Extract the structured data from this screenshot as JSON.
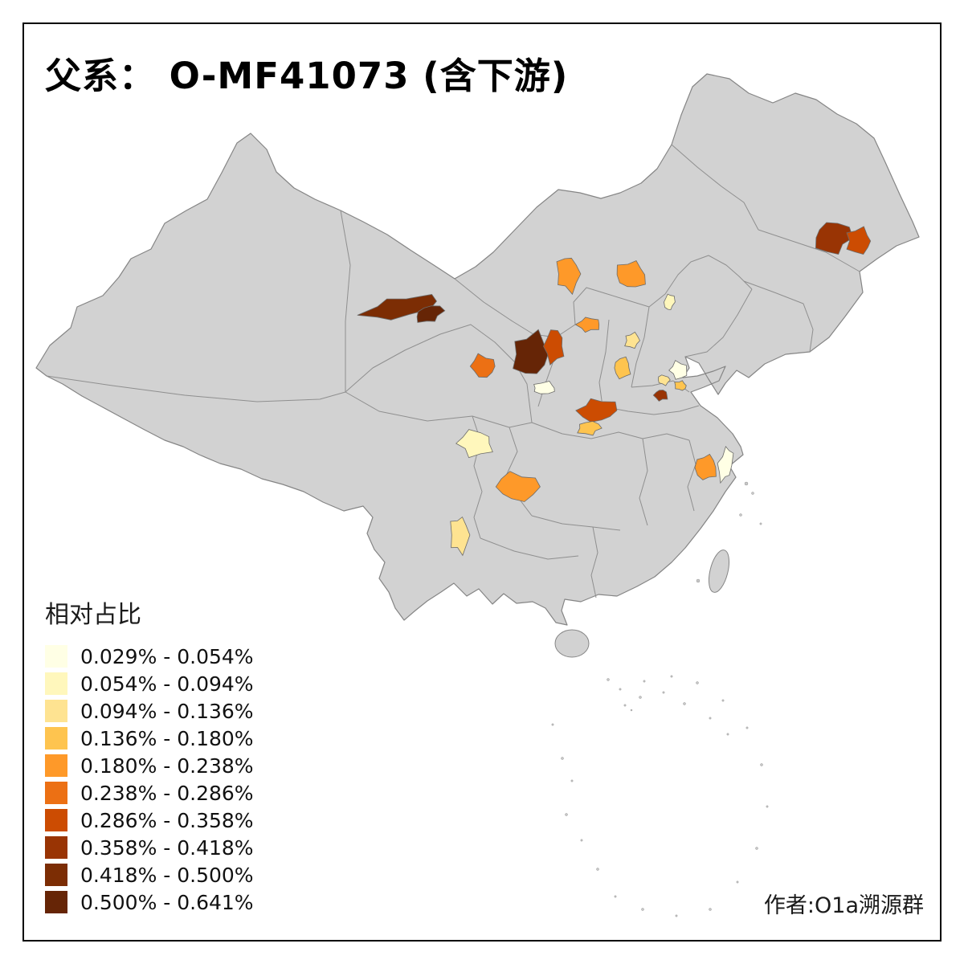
{
  "title": "父系： O-MF41073 (含下游)",
  "attribution": "作者:O1a溯源群",
  "legend": {
    "title": "相对占比",
    "items": [
      {
        "label": "0.029% - 0.054%",
        "color": "#ffffe5"
      },
      {
        "label": "0.054% - 0.094%",
        "color": "#fff7bc"
      },
      {
        "label": "0.094% - 0.136%",
        "color": "#fee391"
      },
      {
        "label": "0.136% - 0.180%",
        "color": "#fec44f"
      },
      {
        "label": "0.180% - 0.238%",
        "color": "#fe9929"
      },
      {
        "label": "0.238% - 0.286%",
        "color": "#ec7014"
      },
      {
        "label": "0.286% - 0.358%",
        "color": "#cc4c02"
      },
      {
        "label": "0.358% - 0.418%",
        "color": "#993404"
      },
      {
        "label": "0.418% - 0.500%",
        "color": "#7c2d04"
      },
      {
        "label": "0.500% - 0.641%",
        "color": "#662506"
      }
    ]
  },
  "map": {
    "land_fill": "#d2d2d2",
    "land_border": "#858585",
    "background": "#ffffff",
    "regions": [
      {
        "id": "region-01",
        "color": "#7c2d04",
        "bin": "0.418% - 0.500%"
      },
      {
        "id": "region-02",
        "color": "#662506",
        "bin": "0.500% - 0.641%"
      },
      {
        "id": "region-03",
        "color": "#662506",
        "bin": "0.500% - 0.641%"
      },
      {
        "id": "region-04",
        "color": "#cc4c02",
        "bin": "0.286% - 0.358%"
      },
      {
        "id": "region-05",
        "color": "#ec7014",
        "bin": "0.238% - 0.286%"
      },
      {
        "id": "region-06",
        "color": "#fe9929",
        "bin": "0.180% - 0.238%"
      },
      {
        "id": "region-07",
        "color": "#fe9929",
        "bin": "0.180% - 0.238%"
      },
      {
        "id": "region-08",
        "color": "#fe9929",
        "bin": "0.180% - 0.238%"
      },
      {
        "id": "region-09",
        "color": "#fff7bc",
        "bin": "0.054% - 0.094%"
      },
      {
        "id": "region-10",
        "color": "#fee391",
        "bin": "0.094% - 0.136%"
      },
      {
        "id": "region-11",
        "color": "#fec44f",
        "bin": "0.136% - 0.180%"
      },
      {
        "id": "region-12",
        "color": "#ffffe5",
        "bin": "0.029% - 0.054%"
      },
      {
        "id": "region-13",
        "color": "#fee391",
        "bin": "0.094% - 0.136%"
      },
      {
        "id": "region-14",
        "color": "#fec44f",
        "bin": "0.136% - 0.180%"
      },
      {
        "id": "region-15",
        "color": "#993404",
        "bin": "0.358% - 0.418%"
      },
      {
        "id": "region-16",
        "color": "#cc4c02",
        "bin": "0.286% - 0.358%"
      },
      {
        "id": "region-17",
        "color": "#fec44f",
        "bin": "0.136% - 0.180%"
      },
      {
        "id": "region-18",
        "color": "#ffffe5",
        "bin": "0.029% - 0.054%"
      },
      {
        "id": "region-19",
        "color": "#fff7bc",
        "bin": "0.054% - 0.094%"
      },
      {
        "id": "region-20",
        "color": "#fe9929",
        "bin": "0.180% - 0.238%"
      },
      {
        "id": "region-21",
        "color": "#fee391",
        "bin": "0.094% - 0.136%"
      },
      {
        "id": "region-22",
        "color": "#fe9929",
        "bin": "0.180% - 0.238%"
      },
      {
        "id": "region-23",
        "color": "#ffffe5",
        "bin": "0.029% - 0.054%"
      },
      {
        "id": "region-24",
        "color": "#993404",
        "bin": "0.358% - 0.418%"
      },
      {
        "id": "region-25",
        "color": "#cc4c02",
        "bin": "0.286% - 0.358%"
      }
    ]
  },
  "chart_data": {
    "type": "choropleth",
    "title": "父系： O-MF41073 (含下游)",
    "legend_title": "相对占比",
    "unit": "%",
    "bins": [
      {
        "label": "0.029% - 0.054%",
        "min": 0.029,
        "max": 0.054,
        "color": "#ffffe5"
      },
      {
        "label": "0.054% - 0.094%",
        "min": 0.054,
        "max": 0.094,
        "color": "#fff7bc"
      },
      {
        "label": "0.094% - 0.136%",
        "min": 0.094,
        "max": 0.136,
        "color": "#fee391"
      },
      {
        "label": "0.136% - 0.180%",
        "min": 0.136,
        "max": 0.18,
        "color": "#fec44f"
      },
      {
        "label": "0.180% - 0.238%",
        "min": 0.18,
        "max": 0.238,
        "color": "#fe9929"
      },
      {
        "label": "0.238% - 0.286%",
        "min": 0.238,
        "max": 0.286,
        "color": "#ec7014"
      },
      {
        "label": "0.286% - 0.358%",
        "min": 0.286,
        "max": 0.358,
        "color": "#cc4c02"
      },
      {
        "label": "0.358% - 0.418%",
        "min": 0.358,
        "max": 0.418,
        "color": "#993404"
      },
      {
        "label": "0.418% - 0.500%",
        "min": 0.418,
        "max": 0.5,
        "color": "#7c2d04"
      },
      {
        "label": "0.500% - 0.641%",
        "min": 0.5,
        "max": 0.641,
        "color": "#662506"
      }
    ],
    "highlighted_region_count": 25
  }
}
